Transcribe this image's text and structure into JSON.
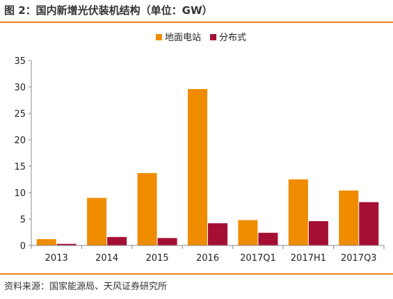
{
  "figure": {
    "title": "图 2：国内新增光伏装机结构（单位：GW）",
    "source": "资料来源：国家能源局、天风证券研究所",
    "accent_color": "#e8801a"
  },
  "chart_data": {
    "type": "bar",
    "categories": [
      "2013",
      "2014",
      "2015",
      "2016",
      "2017Q1",
      "2017H1",
      "2017Q3"
    ],
    "series": [
      {
        "name": "地面电站",
        "color": "#f08c00",
        "values": [
          1.2,
          9.0,
          13.7,
          29.6,
          4.8,
          12.5,
          10.4
        ]
      },
      {
        "name": "分布式",
        "color": "#a50f34",
        "values": [
          0.3,
          1.6,
          1.4,
          4.2,
          2.4,
          4.6,
          8.2
        ]
      }
    ],
    "y_ticks": [
      "0",
      "5",
      "10",
      "15",
      "20",
      "25",
      "30",
      "35"
    ],
    "ylim": [
      0,
      35
    ],
    "grid": false,
    "legend_position": "top-center"
  }
}
